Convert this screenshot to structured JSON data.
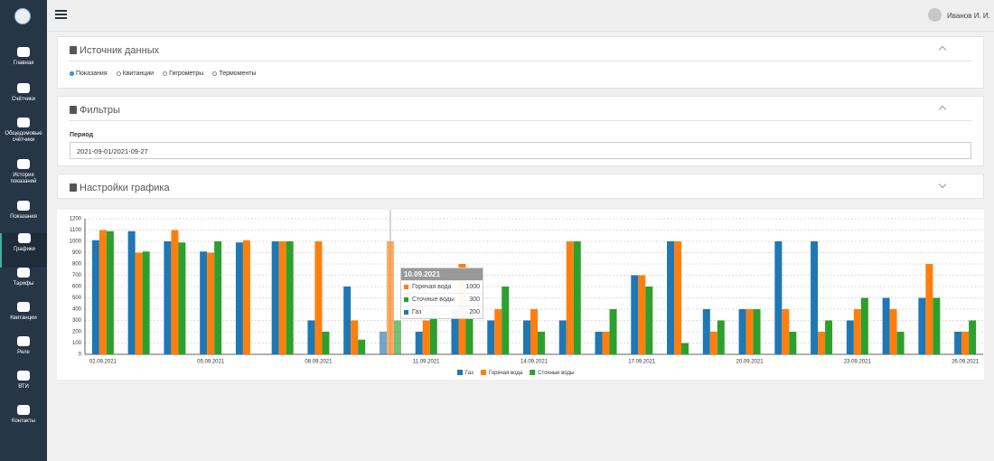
{
  "sidebar": {
    "items": [
      {
        "label": "Главная"
      },
      {
        "label": "Счётчики"
      },
      {
        "label": "Общедомовые счётчики"
      },
      {
        "label": "История показаний"
      },
      {
        "label": "Показания"
      },
      {
        "label": "Графики",
        "active": true
      },
      {
        "label": "Тарифы"
      },
      {
        "label": "Квитанции"
      },
      {
        "label": "Реле"
      },
      {
        "label": "ВТИ"
      },
      {
        "label": "Контакты"
      }
    ]
  },
  "header": {
    "user": "Иванов И. И."
  },
  "source_panel": {
    "title": "Источник данных",
    "options": [
      "Показания",
      "Квитанции",
      "Гигрометры",
      "Термоменты"
    ],
    "selected": 0
  },
  "filters_panel": {
    "title": "Фильтры",
    "period_label": "Период",
    "period_value": "2021-09-01/2021-09-27"
  },
  "settings_panel": {
    "title": "Настройки графика"
  },
  "chart_data": {
    "type": "bar",
    "categories": [
      "02.09.2021",
      null,
      null,
      "05.09.2021",
      null,
      null,
      "08.09.2021",
      null,
      null,
      "11.09.2021",
      null,
      null,
      "14.09.2021",
      null,
      null,
      "17.09.2021",
      null,
      null,
      "20.09.2021",
      null,
      null,
      "23.09.2021",
      null,
      null,
      "26.09.2021"
    ],
    "series": [
      {
        "name": "Газ",
        "color": "#1f77b4",
        "values": [
          1010,
          1090,
          1000,
          910,
          990,
          1000,
          300,
          600,
          200,
          200,
          400,
          300,
          300,
          300,
          200,
          700,
          1000,
          400,
          400,
          1000,
          1000,
          300,
          500,
          500,
          200
        ]
      },
      {
        "name": "Горячая вода",
        "color": "#ff7f0e",
        "values": [
          1100,
          900,
          1100,
          900,
          1010,
          1000,
          1000,
          300,
          1000,
          300,
          800,
          400,
          400,
          1000,
          200,
          700,
          1000,
          200,
          400,
          400,
          200,
          400,
          400,
          800,
          200
        ]
      },
      {
        "name": "Сточные воды",
        "color": "#2ca02c",
        "values": [
          1090,
          910,
          990,
          1000,
          null,
          1000,
          200,
          130,
          300,
          400,
          400,
          600,
          200,
          1000,
          400,
          600,
          100,
          300,
          400,
          200,
          300,
          500,
          200,
          500,
          300
        ]
      }
    ],
    "ylim": [
      0,
      1200
    ],
    "yticks": [
      0,
      100,
      200,
      300,
      400,
      500,
      600,
      700,
      800,
      900,
      1000,
      1100,
      1200
    ],
    "grid": true,
    "tooltip": {
      "index": 8,
      "title": "10.09.2021",
      "rows": [
        {
          "name": "Горячая вода",
          "value": 1000
        },
        {
          "name": "Сточные воды",
          "value": 300
        },
        {
          "name": "Газ",
          "value": 200
        }
      ]
    }
  }
}
